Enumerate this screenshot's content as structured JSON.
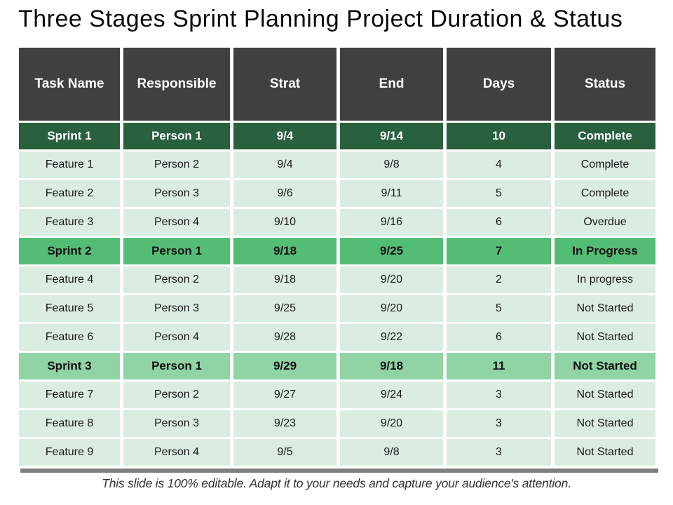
{
  "title": "Three Stages Sprint Planning Project Duration & Status",
  "footer": "This slide is 100% editable. Adapt it to your needs and capture your audience's attention.",
  "colors": {
    "header-bg": "#404040",
    "sprint1-bg": "#29603E",
    "sprint2-bg": "#54BD75",
    "sprint3-bg": "#90D3A4",
    "feature-bg": "#DAEDE0",
    "shadow": "#7F7F7F"
  },
  "table": {
    "columns": [
      "Task Name",
      "Responsible",
      "Strat",
      "End",
      "Days",
      "Status"
    ],
    "rows": [
      {
        "style": "sprint-dark",
        "cells": [
          "Sprint 1",
          "Person 1",
          "9/4",
          "9/14",
          "10",
          "Complete"
        ]
      },
      {
        "style": "feature",
        "cells": [
          "Feature 1",
          "Person 2",
          "9/4",
          "9/8",
          "4",
          "Complete"
        ]
      },
      {
        "style": "feature",
        "cells": [
          "Feature 2",
          "Person 3",
          "9/6",
          "9/11",
          "5",
          "Complete"
        ]
      },
      {
        "style": "feature",
        "cells": [
          "Feature 3",
          "Person 4",
          "9/10",
          "9/16",
          "6",
          "Overdue"
        ]
      },
      {
        "style": "sprint-medium",
        "cells": [
          "Sprint 2",
          "Person 1",
          "9/18",
          "9/25",
          "7",
          "In Progress"
        ]
      },
      {
        "style": "feature",
        "cells": [
          "Feature 4",
          "Person 2",
          "9/18",
          "9/20",
          "2",
          "In progress"
        ]
      },
      {
        "style": "feature",
        "cells": [
          "Feature 5",
          "Person 3",
          "9/25",
          "9/20",
          "5",
          "Not Started"
        ]
      },
      {
        "style": "feature",
        "cells": [
          "Feature 6",
          "Person 4",
          "9/28",
          "9/22",
          "6",
          "Not Started"
        ]
      },
      {
        "style": "sprint-light",
        "cells": [
          "Sprint 3",
          "Person 1",
          "9/29",
          "9/18",
          "11",
          "Not Started"
        ]
      },
      {
        "style": "feature",
        "cells": [
          "Feature 7",
          "Person 2",
          "9/27",
          "9/24",
          "3",
          "Not Started"
        ]
      },
      {
        "style": "feature",
        "cells": [
          "Feature 8",
          "Person 3",
          "9/23",
          "9/20",
          "3",
          "Not Started"
        ]
      },
      {
        "style": "feature",
        "cells": [
          "Feature 9",
          "Person 4",
          "9/5",
          "9/8",
          "3",
          "Not Started"
        ]
      }
    ]
  }
}
